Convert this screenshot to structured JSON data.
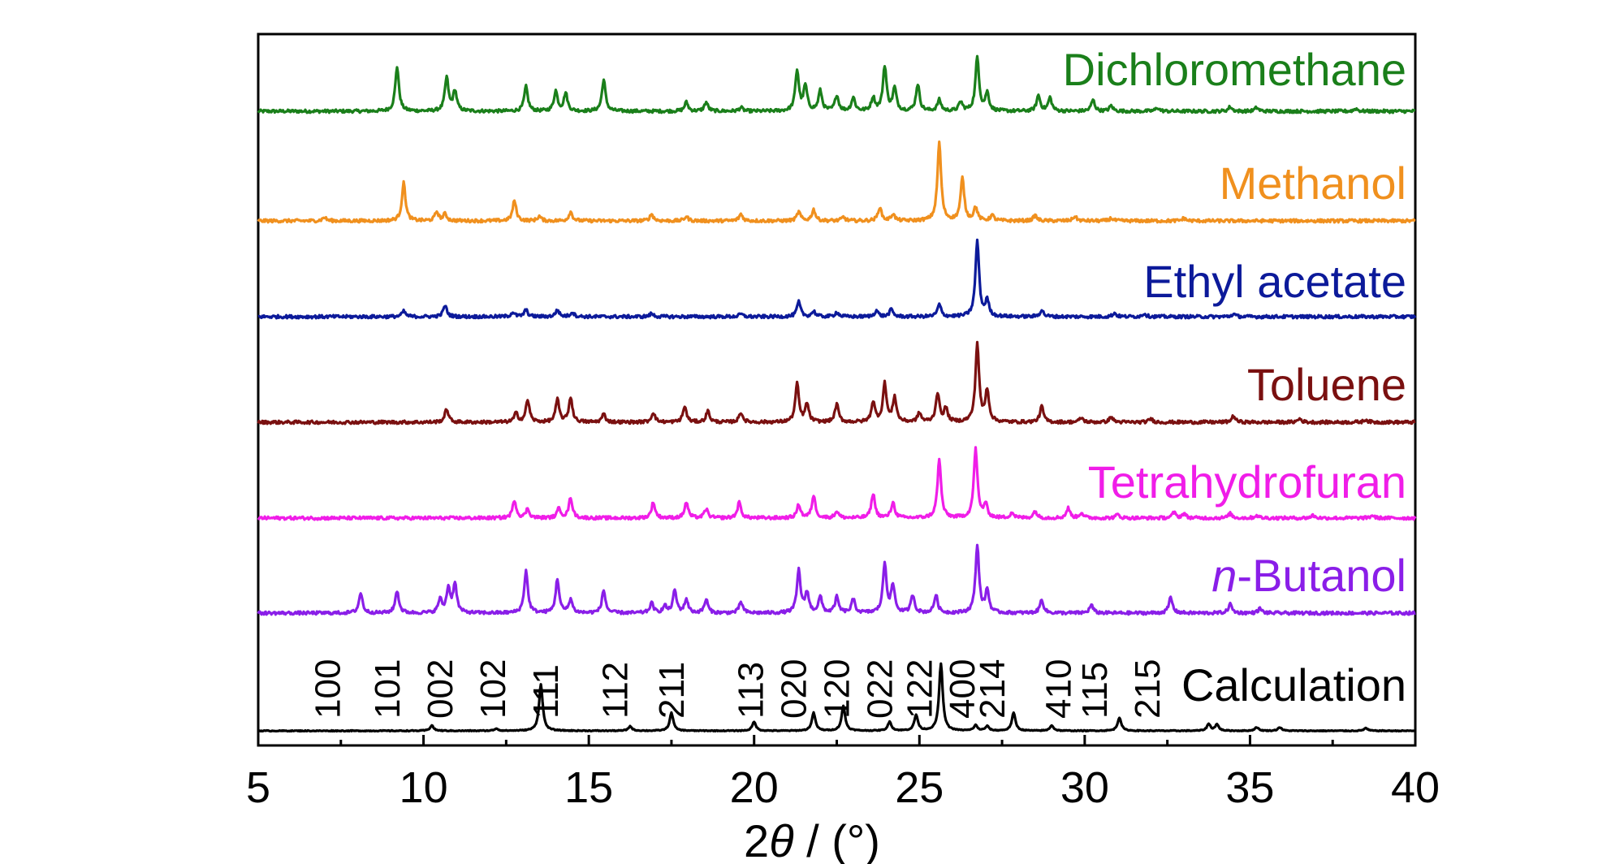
{
  "chart_data": {
    "type": "line",
    "xlabel_parts": {
      "number": "2",
      "symbol": "θ",
      "rest": " / (°)"
    },
    "ylabel": "",
    "xlim": [
      5,
      40
    ],
    "xticks": [
      5,
      10,
      15,
      20,
      25,
      30,
      35,
      40
    ],
    "yticks_shown": false,
    "grid": false,
    "legend": "none",
    "series": [
      {
        "name": "Dichloromethane",
        "color": "#1a7f1a",
        "peaks": [
          [
            9.2,
            1.0
          ],
          [
            10.7,
            0.75
          ],
          [
            10.95,
            0.45
          ],
          [
            13.1,
            0.55
          ],
          [
            14.0,
            0.45
          ],
          [
            14.3,
            0.4
          ],
          [
            15.45,
            0.7
          ],
          [
            17.95,
            0.2
          ],
          [
            18.55,
            0.2
          ],
          [
            19.6,
            0.08
          ],
          [
            21.3,
            0.9
          ],
          [
            21.55,
            0.55
          ],
          [
            22.0,
            0.45
          ],
          [
            22.5,
            0.35
          ],
          [
            23.0,
            0.3
          ],
          [
            23.6,
            0.3
          ],
          [
            23.95,
            1.0
          ],
          [
            24.25,
            0.5
          ],
          [
            24.95,
            0.6
          ],
          [
            25.6,
            0.25
          ],
          [
            26.25,
            0.2
          ],
          [
            26.75,
            1.2
          ],
          [
            27.05,
            0.4
          ],
          [
            28.6,
            0.35
          ],
          [
            28.95,
            0.3
          ],
          [
            30.25,
            0.25
          ],
          [
            30.8,
            0.12
          ],
          [
            32.2,
            0.08
          ],
          [
            34.4,
            0.1
          ],
          [
            35.2,
            0.08
          ],
          [
            38.2,
            0.06
          ]
        ]
      },
      {
        "name": "Methanol",
        "color": "#f0901e",
        "peaks": [
          [
            7.0,
            0.08
          ],
          [
            9.4,
            0.85
          ],
          [
            10.4,
            0.2
          ],
          [
            10.65,
            0.15
          ],
          [
            12.75,
            0.45
          ],
          [
            13.5,
            0.1
          ],
          [
            14.45,
            0.2
          ],
          [
            16.9,
            0.15
          ],
          [
            17.95,
            0.1
          ],
          [
            19.6,
            0.15
          ],
          [
            21.35,
            0.2
          ],
          [
            21.8,
            0.25
          ],
          [
            22.7,
            0.08
          ],
          [
            23.8,
            0.3
          ],
          [
            24.2,
            0.15
          ],
          [
            25.6,
            1.75
          ],
          [
            26.3,
            0.95
          ],
          [
            26.7,
            0.3
          ],
          [
            27.2,
            0.12
          ],
          [
            28.5,
            0.12
          ],
          [
            29.7,
            0.1
          ],
          [
            30.8,
            0.06
          ],
          [
            33.0,
            0.06
          ]
        ]
      },
      {
        "name": "Ethyl acetate",
        "color": "#0c1a9a",
        "peaks": [
          [
            9.4,
            0.12
          ],
          [
            10.65,
            0.25
          ],
          [
            12.7,
            0.1
          ],
          [
            13.1,
            0.15
          ],
          [
            14.05,
            0.15
          ],
          [
            14.5,
            0.1
          ],
          [
            16.9,
            0.07
          ],
          [
            19.6,
            0.06
          ],
          [
            21.35,
            0.33
          ],
          [
            21.8,
            0.12
          ],
          [
            22.5,
            0.1
          ],
          [
            23.7,
            0.14
          ],
          [
            24.15,
            0.16
          ],
          [
            25.6,
            0.27
          ],
          [
            26.75,
            1.7
          ],
          [
            27.05,
            0.35
          ],
          [
            28.7,
            0.15
          ],
          [
            30.9,
            0.08
          ],
          [
            31.8,
            0.07
          ],
          [
            34.5,
            0.06
          ]
        ]
      },
      {
        "name": "Toluene",
        "color": "#7a1010",
        "peaks": [
          [
            10.7,
            0.3
          ],
          [
            12.8,
            0.2
          ],
          [
            13.15,
            0.5
          ],
          [
            14.05,
            0.5
          ],
          [
            14.45,
            0.55
          ],
          [
            15.45,
            0.18
          ],
          [
            16.95,
            0.22
          ],
          [
            17.9,
            0.35
          ],
          [
            18.6,
            0.25
          ],
          [
            19.6,
            0.22
          ],
          [
            21.3,
            0.85
          ],
          [
            21.6,
            0.4
          ],
          [
            22.5,
            0.4
          ],
          [
            23.6,
            0.45
          ],
          [
            23.95,
            0.85
          ],
          [
            24.25,
            0.55
          ],
          [
            25.0,
            0.2
          ],
          [
            25.55,
            0.65
          ],
          [
            25.8,
            0.3
          ],
          [
            26.75,
            1.75
          ],
          [
            27.05,
            0.7
          ],
          [
            28.7,
            0.35
          ],
          [
            29.9,
            0.1
          ],
          [
            30.8,
            0.12
          ],
          [
            32.0,
            0.08
          ],
          [
            34.5,
            0.14
          ],
          [
            36.5,
            0.08
          ],
          [
            38.5,
            0.06
          ]
        ]
      },
      {
        "name": "Tetrahydrofuran",
        "color": "#f01de8",
        "peaks": [
          [
            12.75,
            0.4
          ],
          [
            13.15,
            0.2
          ],
          [
            14.1,
            0.22
          ],
          [
            14.45,
            0.45
          ],
          [
            16.95,
            0.35
          ],
          [
            17.95,
            0.35
          ],
          [
            18.55,
            0.2
          ],
          [
            19.55,
            0.35
          ],
          [
            21.35,
            0.3
          ],
          [
            21.8,
            0.5
          ],
          [
            22.5,
            0.15
          ],
          [
            23.6,
            0.55
          ],
          [
            24.2,
            0.35
          ],
          [
            25.6,
            1.3
          ],
          [
            26.7,
            1.55
          ],
          [
            27.0,
            0.3
          ],
          [
            27.8,
            0.12
          ],
          [
            28.5,
            0.15
          ],
          [
            29.5,
            0.22
          ],
          [
            29.9,
            0.12
          ],
          [
            31.0,
            0.08
          ],
          [
            32.7,
            0.12
          ],
          [
            33.0,
            0.1
          ],
          [
            34.4,
            0.1
          ],
          [
            35.2,
            0.06
          ],
          [
            36.9,
            0.06
          ],
          [
            38.7,
            0.06
          ]
        ]
      },
      {
        "name": "n-Butanol",
        "color": "#8a1ee8",
        "name_parts": {
          "italic": "n",
          "rest": "-Butanol"
        },
        "peaks": [
          [
            8.1,
            0.45
          ],
          [
            9.2,
            0.5
          ],
          [
            10.5,
            0.3
          ],
          [
            10.75,
            0.55
          ],
          [
            10.95,
            0.65
          ],
          [
            13.1,
            0.95
          ],
          [
            14.05,
            0.75
          ],
          [
            14.45,
            0.3
          ],
          [
            15.45,
            0.5
          ],
          [
            16.9,
            0.22
          ],
          [
            17.3,
            0.15
          ],
          [
            17.6,
            0.5
          ],
          [
            17.95,
            0.3
          ],
          [
            18.55,
            0.3
          ],
          [
            19.6,
            0.25
          ],
          [
            21.35,
            0.95
          ],
          [
            21.6,
            0.45
          ],
          [
            22.0,
            0.35
          ],
          [
            22.5,
            0.35
          ],
          [
            23.0,
            0.3
          ],
          [
            23.95,
            1.1
          ],
          [
            24.2,
            0.6
          ],
          [
            24.8,
            0.4
          ],
          [
            25.5,
            0.4
          ],
          [
            26.75,
            1.5
          ],
          [
            27.05,
            0.5
          ],
          [
            28.7,
            0.3
          ],
          [
            30.2,
            0.18
          ],
          [
            32.6,
            0.35
          ],
          [
            34.4,
            0.2
          ],
          [
            35.3,
            0.1
          ]
        ]
      },
      {
        "name": "Calculation",
        "color": "#000000",
        "peaks": [
          [
            10.25,
            0.12
          ],
          [
            12.2,
            0.05
          ],
          [
            13.55,
            1.05
          ],
          [
            16.25,
            0.1
          ],
          [
            17.5,
            0.4
          ],
          [
            20.0,
            0.2
          ],
          [
            21.8,
            0.4
          ],
          [
            22.7,
            0.55
          ],
          [
            24.1,
            0.2
          ],
          [
            24.9,
            0.35
          ],
          [
            25.65,
            1.5
          ],
          [
            26.7,
            0.12
          ],
          [
            27.05,
            0.1
          ],
          [
            27.85,
            0.4
          ],
          [
            29.0,
            0.12
          ],
          [
            31.05,
            0.3
          ],
          [
            33.75,
            0.15
          ],
          [
            34.0,
            0.14
          ],
          [
            35.2,
            0.08
          ],
          [
            35.9,
            0.08
          ],
          [
            38.5,
            0.06
          ]
        ]
      }
    ],
    "reflections": [
      {
        "hkl": "100",
        "x": 7.1
      },
      {
        "hkl": "101",
        "x": 8.9
      },
      {
        "hkl": "002",
        "x": 10.5
      },
      {
        "hkl": "102",
        "x": 12.1
      },
      {
        "hkl": "111",
        "x": 13.7
      },
      {
        "hkl": "112",
        "x": 15.8
      },
      {
        "hkl": "211",
        "x": 17.5
      },
      {
        "hkl": "113",
        "x": 19.9
      },
      {
        "hkl": "020",
        "x": 21.2
      },
      {
        "hkl": "120",
        "x": 22.5
      },
      {
        "hkl": "022",
        "x": 23.8
      },
      {
        "hkl": "122",
        "x": 25.0
      },
      {
        "hkl": "400",
        "x": 26.3
      },
      {
        "hkl": "214",
        "x": 27.2
      },
      {
        "hkl": "410",
        "x": 29.2
      },
      {
        "hkl": "115",
        "x": 30.3
      },
      {
        "hkl": "215",
        "x": 31.9
      }
    ]
  }
}
